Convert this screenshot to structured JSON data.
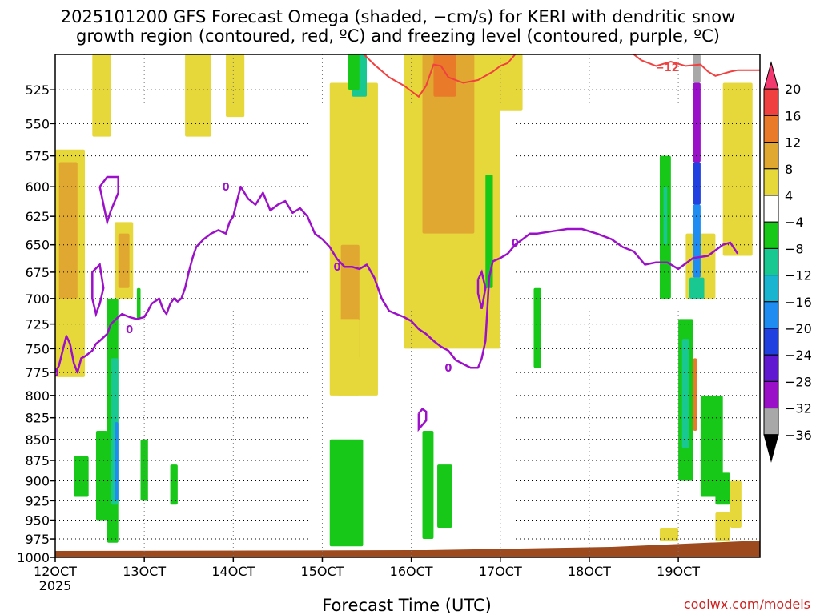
{
  "title_line1": "2025101200 GFS Forecast Omega (shaded, −cm/s) for KERI with dendritic snow",
  "title_line2": "growth region (contoured, red, ºC) and freezing level (contoured, purple, ºC)",
  "xlabel": "Forecast Time (UTC)",
  "credit": "coolwx.com/models",
  "credit_color": "#d02020",
  "chart_data": {
    "type": "heatmap",
    "x_axis": {
      "ticks": [
        "12OCT",
        "13OCT",
        "14OCT",
        "15OCT",
        "16OCT",
        "17OCT",
        "18OCT",
        "19OCT"
      ],
      "first_tick_sub": "2025",
      "range_hours": [
        0,
        190
      ]
    },
    "y_axis": {
      "ticks": [
        525,
        550,
        575,
        600,
        625,
        650,
        675,
        700,
        725,
        750,
        775,
        800,
        825,
        850,
        875,
        900,
        925,
        950,
        975,
        1000
      ],
      "scale": "log-pressure",
      "range_hpa": [
        500,
        1000
      ]
    },
    "grid": true,
    "colorbar": {
      "labels": [
        "20",
        "16",
        "12",
        "8",
        "4",
        "−4",
        "−8",
        "−12",
        "−16",
        "−20",
        "−24",
        "−28",
        "−32",
        "−36"
      ],
      "colors": [
        "#f23a70",
        "#f04040",
        "#e87a2a",
        "#e0a830",
        "#e6d83a",
        "#ffffff",
        "#18c818",
        "#18c890",
        "#18b4d0",
        "#1e8cf0",
        "#2040e0",
        "#6018d0",
        "#9a10c8",
        "#a8a8a8",
        "#000000"
      ],
      "cutoffs": [
        20,
        16,
        12,
        8,
        4,
        -4,
        -8,
        -12,
        -16,
        -20,
        -24,
        -28,
        -32,
        -36
      ]
    },
    "ground_color": "#9c4a1e",
    "freezing_level": {
      "color": "#9b10c8",
      "label": "0",
      "points": [
        [
          0,
          775
        ],
        [
          1,
          768
        ],
        [
          2,
          752
        ],
        [
          3,
          737
        ],
        [
          4,
          745
        ],
        [
          5,
          765
        ],
        [
          6,
          775
        ],
        [
          7,
          760
        ],
        [
          8,
          758
        ],
        [
          9,
          755
        ],
        [
          10,
          752
        ],
        [
          11,
          745
        ],
        [
          12,
          742
        ],
        [
          14,
          735
        ],
        [
          15,
          725
        ],
        [
          17,
          718
        ],
        [
          18,
          715
        ],
        [
          20,
          718
        ],
        [
          22,
          720
        ],
        [
          24,
          718
        ],
        [
          25,
          712
        ],
        [
          26,
          705
        ],
        [
          28,
          700
        ],
        [
          29,
          710
        ],
        [
          30,
          715
        ],
        [
          31,
          705
        ],
        [
          32,
          700
        ],
        [
          33,
          703
        ],
        [
          34,
          700
        ],
        [
          35,
          690
        ],
        [
          36,
          675
        ],
        [
          37,
          662
        ],
        [
          38,
          652
        ],
        [
          40,
          645
        ],
        [
          42,
          640
        ],
        [
          44,
          637
        ],
        [
          46,
          640
        ],
        [
          47,
          630
        ],
        [
          48,
          625
        ],
        [
          49,
          612
        ],
        [
          50,
          600
        ],
        [
          52,
          610
        ],
        [
          54,
          615
        ],
        [
          56,
          605
        ],
        [
          58,
          620
        ],
        [
          60,
          615
        ],
        [
          62,
          612
        ],
        [
          64,
          622
        ],
        [
          66,
          618
        ],
        [
          68,
          625
        ],
        [
          70,
          640
        ],
        [
          72,
          645
        ],
        [
          74,
          652
        ],
        [
          76,
          663
        ],
        [
          78,
          670
        ],
        [
          80,
          670
        ],
        [
          82,
          672
        ],
        [
          84,
          668
        ],
        [
          86,
          680
        ],
        [
          88,
          700
        ],
        [
          90,
          712
        ],
        [
          92,
          715
        ],
        [
          94,
          718
        ],
        [
          96,
          722
        ],
        [
          98,
          730
        ],
        [
          100,
          735
        ],
        [
          102,
          742
        ],
        [
          104,
          748
        ],
        [
          106,
          752
        ],
        [
          108,
          762
        ],
        [
          110,
          766
        ],
        [
          112,
          770
        ],
        [
          114,
          770
        ],
        [
          115,
          760
        ],
        [
          116,
          742
        ],
        [
          117,
          680
        ],
        [
          118,
          665
        ],
        [
          120,
          662
        ],
        [
          122,
          658
        ],
        [
          124,
          650
        ],
        [
          126,
          645
        ],
        [
          128,
          640
        ],
        [
          130,
          640
        ],
        [
          134,
          638
        ],
        [
          138,
          636
        ],
        [
          142,
          636
        ],
        [
          146,
          640
        ],
        [
          150,
          645
        ],
        [
          153,
          652
        ],
        [
          156,
          656
        ],
        [
          159,
          668
        ],
        [
          162,
          666
        ],
        [
          165,
          666
        ],
        [
          168,
          672
        ],
        [
          172,
          662
        ],
        [
          176,
          660
        ],
        [
          180,
          650
        ],
        [
          182,
          648
        ],
        [
          184,
          658
        ]
      ]
    },
    "freezing_level_extras": [
      [
        [
          12,
          600
        ],
        [
          14,
          592
        ],
        [
          17,
          592
        ],
        [
          17,
          605
        ],
        [
          15,
          620
        ],
        [
          14,
          630
        ],
        [
          12,
          600
        ]
      ],
      [
        [
          10,
          675
        ],
        [
          12,
          668
        ],
        [
          13,
          690
        ],
        [
          12,
          705
        ],
        [
          11,
          715
        ],
        [
          10,
          700
        ],
        [
          10,
          675
        ]
      ],
      [
        [
          98,
          820
        ],
        [
          99,
          815
        ],
        [
          100,
          818
        ],
        [
          100,
          828
        ],
        [
          98,
          838
        ],
        [
          98,
          820
        ]
      ],
      [
        [
          114,
          682
        ],
        [
          115,
          675
        ],
        [
          116,
          690
        ],
        [
          115,
          710
        ],
        [
          114,
          695
        ],
        [
          114,
          682
        ]
      ]
    ],
    "dgz_contour": {
      "color": "#f04040",
      "label": "−12",
      "points": [
        [
          82,
          497
        ],
        [
          86,
          507
        ],
        [
          90,
          516
        ],
        [
          94,
          522
        ],
        [
          98,
          530
        ],
        [
          100,
          522
        ],
        [
          102,
          507
        ],
        [
          104,
          508
        ],
        [
          106,
          516
        ],
        [
          110,
          520
        ],
        [
          114,
          518
        ],
        [
          118,
          512
        ],
        [
          120,
          508
        ],
        [
          122,
          506
        ],
        [
          124,
          500
        ]
      ],
      "points2": [
        [
          155,
          498
        ],
        [
          158,
          504
        ],
        [
          162,
          508
        ],
        [
          166,
          505
        ],
        [
          170,
          508
        ],
        [
          174,
          507
        ],
        [
          176,
          512
        ],
        [
          178,
          515
        ],
        [
          182,
          512
        ],
        [
          184,
          511
        ],
        [
          186,
          511
        ],
        [
          190,
          511
        ]
      ]
    },
    "omega_areas": [
      {
        "color": "#e6d83a",
        "x": [
          0,
          8
        ],
        "p": [
          570,
          780
        ]
      },
      {
        "color": "#e0a830",
        "x": [
          1,
          6
        ],
        "p": [
          580,
          700
        ]
      },
      {
        "color": "#e6d83a",
        "x": [
          10,
          15
        ],
        "p": [
          500,
          560
        ]
      },
      {
        "color": "#e6d83a",
        "x": [
          16,
          21
        ],
        "p": [
          630,
          700
        ]
      },
      {
        "color": "#e0a830",
        "x": [
          17,
          20
        ],
        "p": [
          640,
          690
        ]
      },
      {
        "color": "#e6d83a",
        "x": [
          35,
          42
        ],
        "p": [
          500,
          560
        ]
      },
      {
        "color": "#e6d83a",
        "x": [
          46,
          51
        ],
        "p": [
          500,
          545
        ]
      },
      {
        "color": "#e6d83a",
        "x": [
          74,
          87
        ],
        "p": [
          520,
          800
        ]
      },
      {
        "color": "#e0a830",
        "x": [
          77,
          82
        ],
        "p": [
          650,
          760
        ]
      },
      {
        "color": "#18c890",
        "x": [
          80,
          84
        ],
        "p": [
          500,
          530
        ]
      },
      {
        "color": "#18c818",
        "x": [
          79,
          82
        ],
        "p": [
          500,
          525
        ]
      },
      {
        "color": "#e6d83a",
        "x": [
          94,
          120
        ],
        "p": [
          500,
          750
        ]
      },
      {
        "color": "#e0a830",
        "x": [
          99,
          113
        ],
        "p": [
          500,
          640
        ]
      },
      {
        "color": "#e87a2a",
        "x": [
          102,
          108
        ],
        "p": [
          500,
          530
        ]
      },
      {
        "color": "#e6d83a",
        "x": [
          118,
          126
        ],
        "p": [
          500,
          540
        ]
      },
      {
        "color": "#e6d83a",
        "x": [
          170,
          178
        ],
        "p": [
          640,
          700
        ]
      },
      {
        "color": "#e6d83a",
        "x": [
          180,
          188
        ],
        "p": [
          520,
          660
        ]
      },
      {
        "color": "#18c818",
        "x": [
          11,
          14
        ],
        "p": [
          840,
          950
        ]
      },
      {
        "color": "#18c818",
        "x": [
          5,
          9
        ],
        "p": [
          870,
          920
        ]
      },
      {
        "color": "#18c818",
        "x": [
          14,
          17
        ],
        "p": [
          700,
          980
        ]
      },
      {
        "color": "#18c890",
        "x": [
          15,
          17
        ],
        "p": [
          760,
          930
        ]
      },
      {
        "color": "#1e8cf0",
        "x": [
          16,
          17
        ],
        "p": [
          830,
          925
        ]
      },
      {
        "color": "#18c818",
        "x": [
          22,
          23
        ],
        "p": [
          690,
          720
        ]
      },
      {
        "color": "#18c818",
        "x": [
          23,
          25
        ],
        "p": [
          850,
          925
        ]
      },
      {
        "color": "#18c818",
        "x": [
          31,
          33
        ],
        "p": [
          880,
          930
        ]
      },
      {
        "color": "#18c818",
        "x": [
          74,
          83
        ],
        "p": [
          850,
          985
        ]
      },
      {
        "color": "#e6d83a",
        "x": [
          76,
          82
        ],
        "p": [
          720,
          800
        ]
      },
      {
        "color": "#18c818",
        "x": [
          99,
          102
        ],
        "p": [
          840,
          975
        ]
      },
      {
        "color": "#18c818",
        "x": [
          103,
          107
        ],
        "p": [
          880,
          960
        ]
      },
      {
        "color": "#18c818",
        "x": [
          116,
          118
        ],
        "p": [
          590,
          690
        ]
      },
      {
        "color": "#18c818",
        "x": [
          129,
          131
        ],
        "p": [
          690,
          770
        ]
      },
      {
        "color": "#18c818",
        "x": [
          163,
          166
        ],
        "p": [
          575,
          700
        ]
      },
      {
        "color": "#18c890",
        "x": [
          164,
          165
        ],
        "p": [
          600,
          650
        ]
      },
      {
        "color": "#18c818",
        "x": [
          168,
          172
        ],
        "p": [
          720,
          900
        ]
      },
      {
        "color": "#18c890",
        "x": [
          169,
          171
        ],
        "p": [
          740,
          860
        ]
      },
      {
        "color": "#e87a2a",
        "x": [
          172,
          173
        ],
        "p": [
          760,
          840
        ]
      },
      {
        "color": "#a8a8a8",
        "x": [
          172,
          174
        ],
        "p": [
          500,
          520
        ]
      },
      {
        "color": "#9a10c8",
        "x": [
          172,
          174
        ],
        "p": [
          520,
          580
        ]
      },
      {
        "color": "#2040e0",
        "x": [
          172,
          174
        ],
        "p": [
          580,
          615
        ]
      },
      {
        "color": "#1e8cf0",
        "x": [
          172,
          174
        ],
        "p": [
          615,
          680
        ]
      },
      {
        "color": "#18c890",
        "x": [
          171,
          175
        ],
        "p": [
          680,
          700
        ]
      },
      {
        "color": "#18c818",
        "x": [
          174,
          180
        ],
        "p": [
          800,
          920
        ]
      },
      {
        "color": "#18c818",
        "x": [
          178,
          182
        ],
        "p": [
          890,
          930
        ]
      },
      {
        "color": "#e6d83a",
        "x": [
          182,
          185
        ],
        "p": [
          900,
          960
        ]
      },
      {
        "color": "#e6d83a",
        "x": [
          163,
          168
        ],
        "p": [
          960,
          978
        ]
      },
      {
        "color": "#e6d83a",
        "x": [
          178,
          182
        ],
        "p": [
          940,
          978
        ]
      }
    ]
  }
}
